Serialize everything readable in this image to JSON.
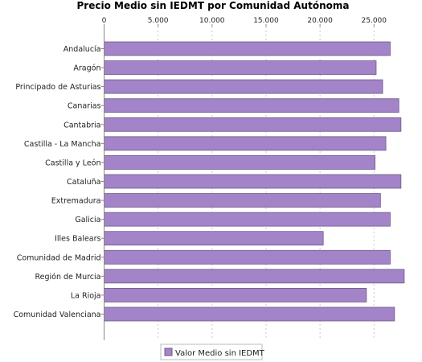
{
  "chart_data": {
    "type": "bar",
    "orientation": "horizontal",
    "title": "Precio Medio sin IEDMT por Comunidad Autónoma",
    "categories": [
      "Andalucía",
      "Aragón",
      "Principado de Asturias",
      "Canarias",
      "Cantabria",
      "Castilla - La Mancha",
      "Castilla y León",
      "Cataluña",
      "Extremadura",
      "Galicia",
      "Illes Balears",
      "Comunidad de Madrid",
      "Región de Murcia",
      "La Rioja",
      "Comunidad Valenciana"
    ],
    "series": [
      {
        "name": "Valor Medio sin IEDMT",
        "values": [
          26500,
          25200,
          25800,
          27300,
          27500,
          26100,
          25100,
          27500,
          25600,
          26500,
          20300,
          26500,
          27800,
          24300,
          26900
        ]
      }
    ],
    "x_ticks": [
      "0",
      "5.000",
      "10.000",
      "15.000",
      "20.000",
      "25.000"
    ],
    "x_tick_values": [
      0,
      5000,
      10000,
      15000,
      20000,
      25000
    ],
    "xlim": [
      0,
      29000
    ],
    "axis_position": "top",
    "grid": "vertical-dashed",
    "legend": "bottom-center",
    "bar_color": "#a384c8",
    "bar_stroke": "#6b5a85"
  }
}
